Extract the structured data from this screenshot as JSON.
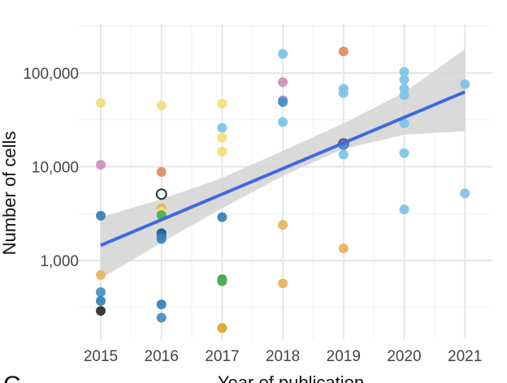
{
  "panel_letter": "C",
  "chart_data": {
    "type": "scatter",
    "xlabel": "Year of publication",
    "ylabel": "Number of cells",
    "x_ticks": [
      2015,
      2016,
      2017,
      2018,
      2019,
      2020,
      2021
    ],
    "xlim": [
      2014.9,
      2021.2
    ],
    "y_scale": "log",
    "y_ticks": [
      1000,
      10000,
      100000
    ],
    "y_tick_labels": [
      "1,000",
      "10,000",
      "100,000"
    ],
    "ylim": [
      150,
      250000
    ],
    "grid": true,
    "legend": "none",
    "points": [
      {
        "x": 2015,
        "y": 48000,
        "color": "#f0e27a"
      },
      {
        "x": 2015,
        "y": 10500,
        "color": "#cf8fc0"
      },
      {
        "x": 2015,
        "y": 3000,
        "color": "#3a83b8"
      },
      {
        "x": 2015,
        "y": 700,
        "color": "#e9b45e"
      },
      {
        "x": 2015,
        "y": 460,
        "color": "#4a90c4"
      },
      {
        "x": 2015,
        "y": 370,
        "color": "#3a83b8"
      },
      {
        "x": 2015,
        "y": 290,
        "color": "#333333"
      },
      {
        "x": 2016,
        "y": 45000,
        "color": "#f0e27a"
      },
      {
        "x": 2016,
        "y": 8800,
        "color": "#e08e63"
      },
      {
        "x": 2016,
        "y": 5100,
        "color": "#ffffff",
        "stroke": "#333333"
      },
      {
        "x": 2016,
        "y": 3600,
        "color": "#e9b45e"
      },
      {
        "x": 2016,
        "y": 3300,
        "color": "#f0e27a"
      },
      {
        "x": 2016,
        "y": 3050,
        "color": "#4caf50"
      },
      {
        "x": 2016,
        "y": 1950,
        "color": "#1b4f72"
      },
      {
        "x": 2016,
        "y": 1850,
        "color": "#2a6fa8"
      },
      {
        "x": 2016,
        "y": 1700,
        "color": "#3a83b8"
      },
      {
        "x": 2016,
        "y": 340,
        "color": "#3a83b8"
      },
      {
        "x": 2016,
        "y": 245,
        "color": "#4a90c4"
      },
      {
        "x": 2017,
        "y": 47000,
        "color": "#f0e27a"
      },
      {
        "x": 2017,
        "y": 26000,
        "color": "#7fc4e8"
      },
      {
        "x": 2017,
        "y": 20500,
        "color": "#f0e27a"
      },
      {
        "x": 2017,
        "y": 14500,
        "color": "#f0e27a"
      },
      {
        "x": 2017,
        "y": 2900,
        "color": "#3a83b8"
      },
      {
        "x": 2017,
        "y": 630,
        "color": "#3e9c6e"
      },
      {
        "x": 2017,
        "y": 600,
        "color": "#4caf50"
      },
      {
        "x": 2017,
        "y": 190,
        "color": "#e0a530"
      },
      {
        "x": 2018,
        "y": 160000,
        "color": "#7fc4e8"
      },
      {
        "x": 2018,
        "y": 80000,
        "color": "#cf8fc0"
      },
      {
        "x": 2018,
        "y": 51000,
        "color": "#9b8dc0"
      },
      {
        "x": 2018,
        "y": 49000,
        "color": "#4a90c4"
      },
      {
        "x": 2018,
        "y": 30000,
        "color": "#7fc4e8"
      },
      {
        "x": 2018,
        "y": 2400,
        "color": "#e9b45e"
      },
      {
        "x": 2018,
        "y": 570,
        "color": "#e9b45e"
      },
      {
        "x": 2019,
        "y": 170000,
        "color": "#e08e63"
      },
      {
        "x": 2019,
        "y": 68000,
        "color": "#7fc4e8"
      },
      {
        "x": 2019,
        "y": 61000,
        "color": "#7fc4e8"
      },
      {
        "x": 2019,
        "y": 17500,
        "color": "#b5654d",
        "stroke": "#555555"
      },
      {
        "x": 2019,
        "y": 17000,
        "color": "#4a90c4"
      },
      {
        "x": 2019,
        "y": 13500,
        "color": "#7fc4e8"
      },
      {
        "x": 2019,
        "y": 1350,
        "color": "#e9b45e"
      },
      {
        "x": 2020,
        "y": 103000,
        "color": "#7fc4e8"
      },
      {
        "x": 2020,
        "y": 85000,
        "color": "#7fc4e8"
      },
      {
        "x": 2020,
        "y": 68000,
        "color": "#7fc4e8"
      },
      {
        "x": 2020,
        "y": 58000,
        "color": "#7fc4e8"
      },
      {
        "x": 2020,
        "y": 29000,
        "color": "#7fc4e8"
      },
      {
        "x": 2020,
        "y": 14000,
        "color": "#7fc4e8"
      },
      {
        "x": 2020,
        "y": 3500,
        "color": "#7fc4e8"
      },
      {
        "x": 2021,
        "y": 76000,
        "color": "#7fc4e8"
      },
      {
        "x": 2021,
        "y": 5200,
        "color": "#7fc4e8"
      }
    ],
    "fit_line": {
      "color": "#3f69e0",
      "points": [
        {
          "x": 2015,
          "y": 1450
        },
        {
          "x": 2021,
          "y": 63000
        }
      ]
    },
    "confidence_band": {
      "color": "#d3d3d3",
      "points": [
        {
          "x": 2015,
          "lower": 640,
          "upper": 2900
        },
        {
          "x": 2016,
          "lower": 1550,
          "upper": 4500
        },
        {
          "x": 2017,
          "lower": 3600,
          "upper": 7600
        },
        {
          "x": 2018,
          "lower": 8000,
          "upper": 14800
        },
        {
          "x": 2019,
          "lower": 15500,
          "upper": 29000
        },
        {
          "x": 2020,
          "lower": 22000,
          "upper": 62000
        },
        {
          "x": 2021,
          "lower": 24000,
          "upper": 180000
        }
      ]
    }
  }
}
